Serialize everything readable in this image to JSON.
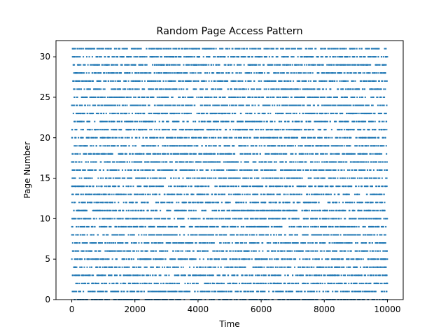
{
  "chart_data": {
    "type": "scatter",
    "title": "Random Page Access Pattern",
    "xlabel": "Time",
    "ylabel": "Page Number",
    "xlim": [
      -500,
      10500
    ],
    "ylim": [
      0,
      32
    ],
    "x_ticks": [
      0,
      2000,
      4000,
      6000,
      8000,
      10000
    ],
    "y_ticks": [
      0,
      5,
      10,
      15,
      20,
      25,
      30
    ],
    "grid": false,
    "legend": "none",
    "marker_color": "#1f77b4",
    "series": [
      {
        "description": "10000 random accesses, one per time step from 0 to 9999, each to a page number in 0–31",
        "x_range": [
          0,
          9999
        ],
        "page_range": [
          0,
          31
        ],
        "count": 10000
      }
    ]
  }
}
